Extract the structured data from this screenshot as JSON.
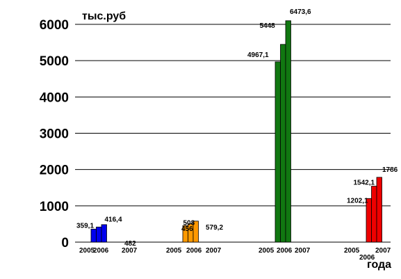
{
  "chart_data": {
    "type": "bar",
    "ylabel": "тыс.руб",
    "xlabel": "года",
    "ylim": [
      0,
      6000
    ],
    "yticks": [
      "0",
      "1000",
      "2000",
      "3000",
      "4000",
      "5000",
      "6000"
    ],
    "grid": true,
    "legend": "none",
    "groups": [
      {
        "color": "#0000ee",
        "bars": [
          {
            "year": "2005",
            "value": 359.1,
            "label": "359,1"
          },
          {
            "year": "2006",
            "value": 416.4,
            "label": "416,4"
          },
          {
            "year": "2007",
            "value": 482,
            "label": "482"
          }
        ]
      },
      {
        "color": "#ff9900",
        "bars": [
          {
            "year": "2005",
            "value": 456,
            "label": "456"
          },
          {
            "year": "2006",
            "value": 508,
            "label": "508"
          },
          {
            "year": "2007",
            "value": 579.2,
            "label": "579,2"
          }
        ]
      },
      {
        "color": "#117711",
        "bars": [
          {
            "year": "2005",
            "value": 4967.1,
            "label": "4967,1"
          },
          {
            "year": "2006",
            "value": 5448,
            "label": "5448"
          },
          {
            "year": "2007",
            "value": 6473.6,
            "label": "6473,6"
          }
        ]
      },
      {
        "color": "#ee0000",
        "bars": [
          {
            "year": "2005",
            "value": 1202.1,
            "label": "1202,1"
          },
          {
            "year": "2006",
            "value": 1542.1,
            "label": "1542,1"
          },
          {
            "year": "2007",
            "value": 1786,
            "label": "1786"
          }
        ]
      }
    ]
  }
}
